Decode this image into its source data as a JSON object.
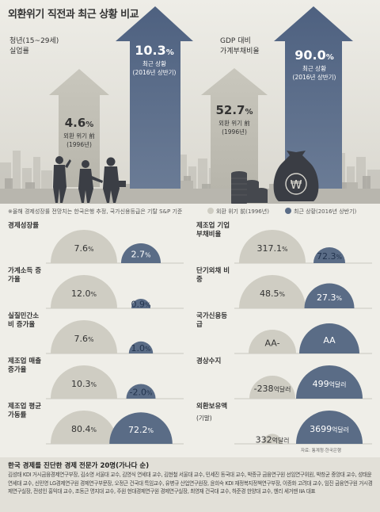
{
  "title": "외환위기 직전과 최근 상황 비교",
  "colors": {
    "before": "#cfcdc3",
    "recent": "#5a6c86",
    "bg": "#efeee8",
    "footer_bg": "#e2e0d8"
  },
  "hero": {
    "left": {
      "label_line1": "청년(15~29세)",
      "label_line2": "실업률",
      "before_value": "4.6",
      "before_unit": "%",
      "before_sub1": "외환 위기 前",
      "before_sub2": "(1996년)",
      "recent_value": "10.3",
      "recent_unit": "%",
      "recent_sub1": "최근 상황",
      "recent_sub2": "(2016년 상반기)"
    },
    "right": {
      "label_line1": "GDP 대비",
      "label_line2": "가계부채비율",
      "before_value": "52.7",
      "before_unit": "%",
      "before_sub1": "외환 위기 前",
      "before_sub2": "(1996년)",
      "recent_value": "90.0",
      "recent_unit": "%",
      "recent_sub1": "최근 상황",
      "recent_sub2": "(2016년 상반기)"
    },
    "coin_symbol": "₩"
  },
  "note": "※올해 경제성장률 전망치는 한국은행 추정, 국가신용등급은 기탈 S&P 기준",
  "legend": {
    "before": "외환 위기 前(1996년)",
    "recent": "최근 상황(2016년 상반기)"
  },
  "chart_data": [
    {
      "type": "bar",
      "title": "경제성장률",
      "before": {
        "value": 7.6,
        "label": "7.6",
        "unit": "%"
      },
      "recent": {
        "value": 2.7,
        "label": "2.7",
        "unit": "%"
      }
    },
    {
      "type": "bar",
      "title": "가계소득 증가율",
      "before": {
        "value": 12.0,
        "label": "12.0",
        "unit": "%"
      },
      "recent": {
        "value": 0.9,
        "label": "0.9",
        "unit": "%"
      }
    },
    {
      "type": "bar",
      "title": "실질민간소비 증가율",
      "before": {
        "value": 7.6,
        "label": "7.6",
        "unit": "%"
      },
      "recent": {
        "value": 1.0,
        "label": "1.0",
        "unit": "%"
      }
    },
    {
      "type": "bar",
      "title": "제조업 매출증가율",
      "before": {
        "value": 10.3,
        "label": "10.3",
        "unit": "%"
      },
      "recent": {
        "value": -2.0,
        "label": "-2.0",
        "unit": "%"
      }
    },
    {
      "type": "bar",
      "title": "제조업 평균가동률",
      "before": {
        "value": 80.4,
        "label": "80.4",
        "unit": "%"
      },
      "recent": {
        "value": 72.2,
        "label": "72.2",
        "unit": "%"
      }
    },
    {
      "type": "bar",
      "title": "제조업 기업부채비율",
      "before": {
        "value": 317.1,
        "label": "317.1",
        "unit": "%"
      },
      "recent": {
        "value": 72.3,
        "label": "72.3",
        "unit": "%"
      }
    },
    {
      "type": "bar",
      "title": "단기외채 비중",
      "before": {
        "value": 48.5,
        "label": "48.5",
        "unit": "%"
      },
      "recent": {
        "value": 27.3,
        "label": "27.3",
        "unit": "%"
      }
    },
    {
      "type": "bar",
      "title": "국가신용등급",
      "before": {
        "label": "AA-",
        "unit": ""
      },
      "recent": {
        "label": "AA",
        "unit": ""
      }
    },
    {
      "type": "bar",
      "title": "경상수지",
      "before": {
        "value": -238,
        "label": "-238",
        "unit": "억달러"
      },
      "recent": {
        "value": 499,
        "label": "499",
        "unit": "억달러"
      }
    },
    {
      "type": "bar",
      "title": "외환보유액",
      "subtitle": "(기말)",
      "before": {
        "value": 332,
        "label": "332",
        "unit": "억달러"
      },
      "recent": {
        "value": 3699,
        "label": "3699",
        "unit": "억달러"
      }
    }
  ],
  "source": "자료: 통계청·한국은행",
  "footer": {
    "title": "한국 경제를 진단한 경제 전문가 20명(가나다 순)",
    "body": "김성태 KDI 거시금융경제연구부장, 김소영 서울대 교수, 김영식 연세대 교수, 김현철 서울대 교수, 민세진 동국대 교수, 박종규 금융연구원 선임연구위원, 박창균 중앙대 교수, 성태윤 연세대 교수, 신민영 LG경제연구원 경제연구부문장, 오정근 건국대 특임교수, 유병규 산업연구원장, 윤희숙 KDI 재정복지정책연구부장, 이종화 고려대 교수, 임진 금융연구원 거시경제연구실장, 전성인 홍익대 교수, 조동근 명지대 교수, 주원 현대경제연구원 경제연구실장, 최영재 건국대 교수, 하준경 한양대 교수, 헨리 세거맨 IIA 대표"
  }
}
